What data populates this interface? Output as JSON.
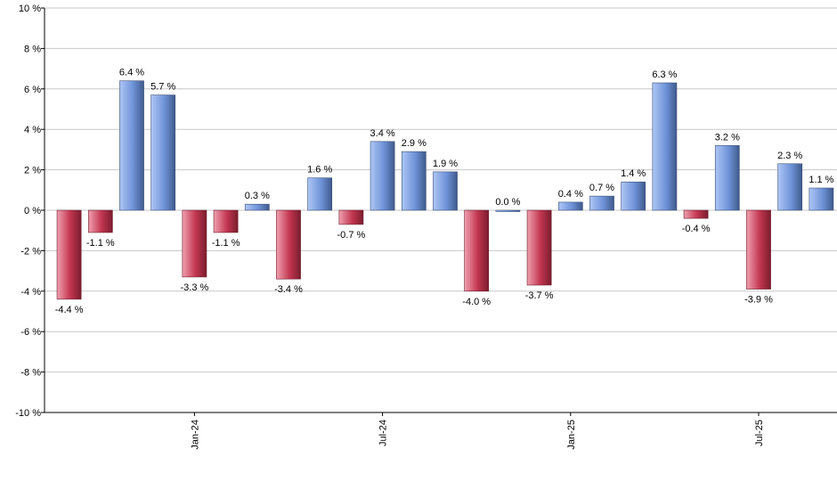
{
  "chart_data": {
    "type": "bar",
    "values": [
      -4.4,
      -1.1,
      6.4,
      5.7,
      -3.3,
      -1.1,
      0.3,
      -3.4,
      1.6,
      -0.7,
      3.4,
      2.9,
      1.9,
      -4.0,
      0.0,
      -3.7,
      0.4,
      0.7,
      1.4,
      6.3,
      -0.4,
      3.2,
      -3.9,
      2.3,
      1.1
    ],
    "data_labels": [
      "-4.4 %",
      "-1.1 %",
      "6.4 %",
      "5.7 %",
      "-3.3 %",
      "-1.1 %",
      "0.3 %",
      "-3.4 %",
      "1.6 %",
      "-0.7 %",
      "3.4 %",
      "2.9 %",
      "1.9 %",
      "-4.0 %",
      "0.0 %",
      "-3.7 %",
      "0.4 %",
      "0.7 %",
      "1.4 %",
      "6.3 %",
      "-0.4 %",
      "3.2 %",
      "-3.9 %",
      "2.3 %",
      "1.1 %"
    ],
    "x_ticks": [
      {
        "label": "Jan-24",
        "position": 4.5
      },
      {
        "label": "Jul-24",
        "position": 10.5
      },
      {
        "label": "Jan-25",
        "position": 16.5
      },
      {
        "label": "Jul-25",
        "position": 22.5
      }
    ],
    "y_ticks": [
      {
        "value": 10,
        "label": "10 %"
      },
      {
        "value": 8,
        "label": "8 %"
      },
      {
        "value": 6,
        "label": "6 %"
      },
      {
        "value": 4,
        "label": "4 %"
      },
      {
        "value": 2,
        "label": "2 %"
      },
      {
        "value": 0,
        "label": "0 %"
      },
      {
        "value": -2,
        "label": "-2 %"
      },
      {
        "value": -4,
        "label": "-4 %"
      },
      {
        "value": -6,
        "label": "-6 %"
      },
      {
        "value": -8,
        "label": "-8 %"
      },
      {
        "value": -10,
        "label": "-10 %"
      }
    ],
    "ylim": [
      -10,
      10
    ],
    "grid": true,
    "colors": {
      "positive": "#6f93d8",
      "negative": "#c23550",
      "grid": "#c8c8c8",
      "axis": "#000000"
    }
  }
}
